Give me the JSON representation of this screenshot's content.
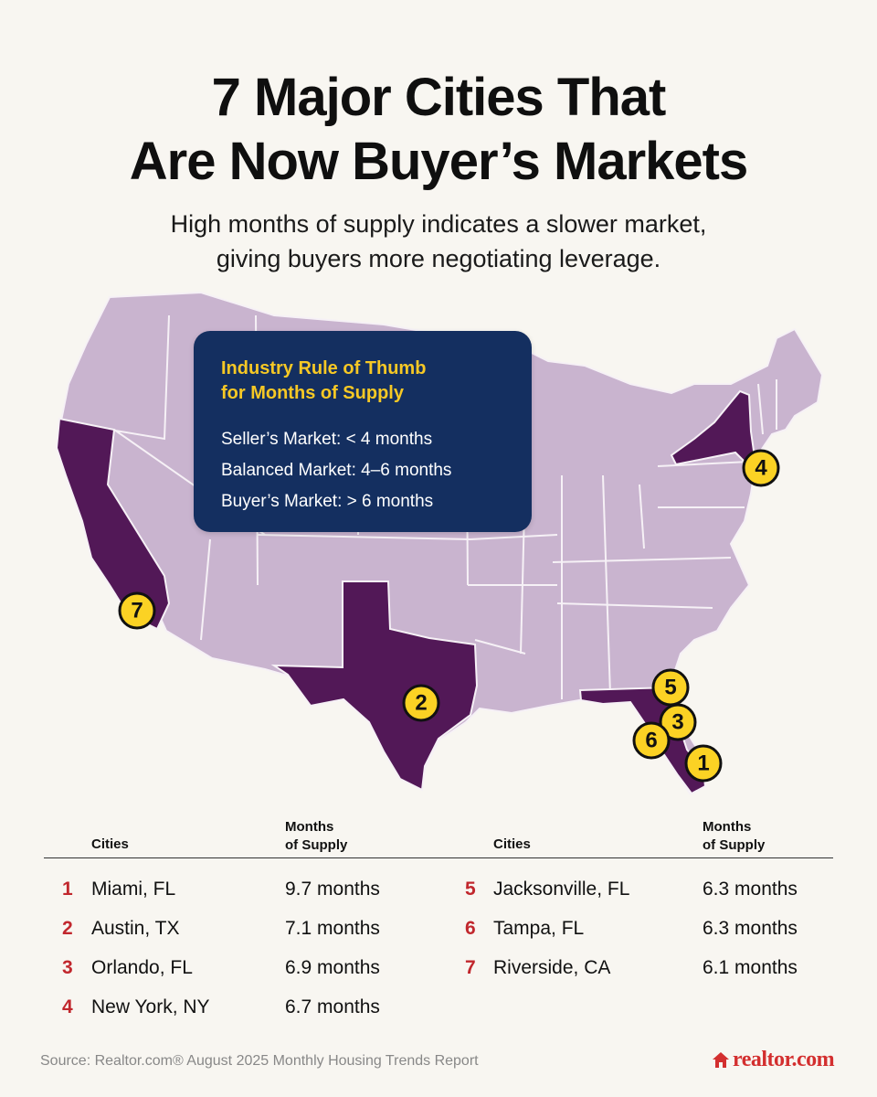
{
  "title_line1": "7 Major Cities That",
  "title_line2": "Are Now Buyer’s Markets",
  "subtitle_line1": "High months of supply indicates a slower market,",
  "subtitle_line2": "giving buyers more negotiating leverage.",
  "rule_box": {
    "title_line1": "Industry Rule of Thumb",
    "title_line2": "for Months of Supply",
    "lines": [
      "Seller’s Market: < 4 months",
      "Balanced Market: 4–6 months",
      "Buyer’s Market: > 6 months"
    ]
  },
  "markers": [
    "1",
    "2",
    "3",
    "4",
    "5",
    "6",
    "7"
  ],
  "colors": {
    "background": "#f8f6f1",
    "state_highlight": "#521857",
    "state_default": "#c9b4cf",
    "marker": "#fbd224",
    "rule_box": "#142f60",
    "rule_title": "#f6c825",
    "rank": "#c1272d",
    "logo": "#d32f2f"
  },
  "table": {
    "col_cities": "Cities",
    "col_supply_line1": "Months",
    "col_supply_line2": "of Supply",
    "rows": [
      {
        "rank": "1",
        "city": "Miami, FL",
        "supply": "9.7 months"
      },
      {
        "rank": "2",
        "city": "Austin, TX",
        "supply": "7.1 months"
      },
      {
        "rank": "3",
        "city": "Orlando, FL",
        "supply": "6.9 months"
      },
      {
        "rank": "4",
        "city": "New York, NY",
        "supply": "6.7 months"
      },
      {
        "rank": "5",
        "city": "Jacksonville, FL",
        "supply": "6.3 months"
      },
      {
        "rank": "6",
        "city": "Tampa, FL",
        "supply": "6.3 months"
      },
      {
        "rank": "7",
        "city": "Riverside, CA",
        "supply": "6.1 months"
      }
    ]
  },
  "source": "Source: Realtor.com® August 2025 Monthly Housing Trends Report",
  "logo_text": "realtor.com",
  "logo_icon": "house-icon"
}
